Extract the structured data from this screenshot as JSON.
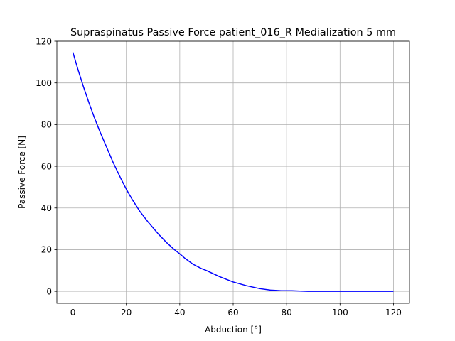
{
  "chart_data": {
    "type": "line",
    "title": "Supraspinatus Passive Force patient_016_R Medialization 5 mm",
    "xlabel": "Abduction [°]",
    "ylabel": "Passive Force [N]",
    "xlim": [
      -6,
      126
    ],
    "ylim": [
      -5.75,
      120
    ],
    "xticks": [
      0,
      20,
      40,
      60,
      80,
      100,
      120
    ],
    "yticks": [
      0,
      20,
      40,
      60,
      80,
      100,
      120
    ],
    "grid": true,
    "series": [
      {
        "color": "#0000ff",
        "x": [
          0,
          2,
          4,
          6,
          8,
          10,
          12,
          15,
          18,
          20,
          22,
          25,
          28,
          30,
          32,
          35,
          38,
          40,
          42,
          45,
          48,
          50,
          55,
          60,
          65,
          70,
          74,
          78,
          80,
          82,
          85,
          88,
          90,
          100,
          110,
          120
        ],
        "y": [
          114.7,
          106,
          98,
          90.5,
          83.5,
          77,
          71,
          62,
          54,
          49,
          44.5,
          38.5,
          33.5,
          30.5,
          27.5,
          23.5,
          20,
          18,
          15.8,
          13,
          11,
          10,
          7,
          4.5,
          2.7,
          1.3,
          0.6,
          0.3,
          0.3,
          0.3,
          0.15,
          0,
          0,
          0,
          0,
          0
        ]
      }
    ]
  }
}
